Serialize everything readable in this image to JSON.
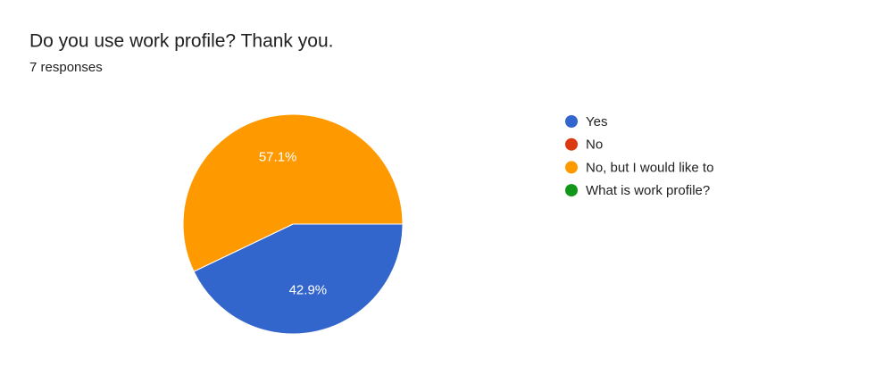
{
  "chart_data": {
    "type": "pie",
    "title": "Do you use work profile? Thank you.",
    "subtitle": "7 responses",
    "categories": [
      "Yes",
      "No",
      "No, but I would like to",
      "What is work profile?"
    ],
    "values": [
      42.9,
      0,
      57.1,
      0
    ],
    "value_labels": [
      "42.9%",
      null,
      "57.1%",
      null
    ],
    "colors": [
      "#3366cc",
      "#dc3912",
      "#ff9900",
      "#109618"
    ],
    "legend": "right"
  }
}
